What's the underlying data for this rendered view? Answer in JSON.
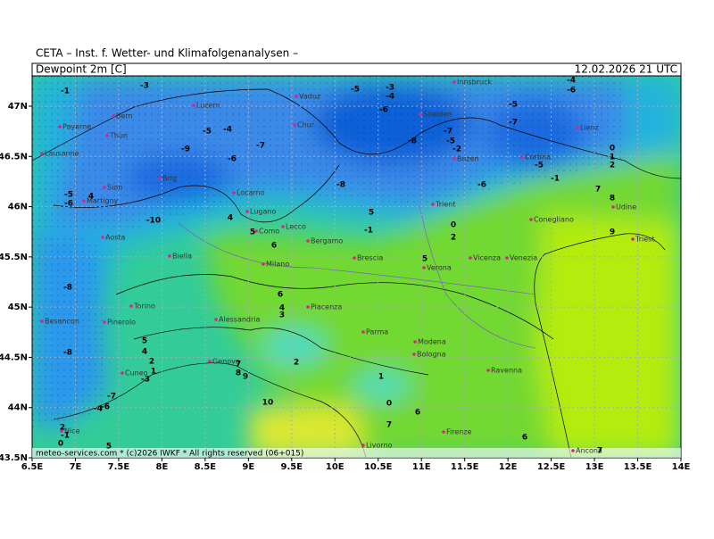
{
  "header": {
    "title": "CETA – Inst. f. Wetter- und Klimafolgenanalysen –",
    "field": "Dewpoint 2m [C]",
    "valid": "12.02.2026 21 UTC"
  },
  "map": {
    "lon_ticks": [
      {
        "value": 6.5,
        "label": "6.5E"
      },
      {
        "value": 7,
        "label": "7E"
      },
      {
        "value": 7.5,
        "label": "7.5E"
      },
      {
        "value": 8,
        "label": "8E"
      },
      {
        "value": 8.5,
        "label": "8.5E"
      },
      {
        "value": 9,
        "label": "9E"
      },
      {
        "value": 9.5,
        "label": "9.5E"
      },
      {
        "value": 10,
        "label": "10E"
      },
      {
        "value": 10.5,
        "label": "10.5E"
      },
      {
        "value": 11,
        "label": "11E"
      },
      {
        "value": 11.5,
        "label": "11.5E"
      },
      {
        "value": 12,
        "label": "12E"
      },
      {
        "value": 12.5,
        "label": "12.5E"
      },
      {
        "value": 13,
        "label": "13E"
      },
      {
        "value": 13.5,
        "label": "13.5E"
      },
      {
        "value": 14,
        "label": "14E"
      }
    ],
    "lat_ticks": [
      {
        "value": 43.5,
        "label": "43.5N"
      },
      {
        "value": 44,
        "label": "44N"
      },
      {
        "value": 44.5,
        "label": "44.5N"
      },
      {
        "value": 45,
        "label": "45N"
      },
      {
        "value": 45.5,
        "label": "45.5N"
      },
      {
        "value": 46,
        "label": "46N"
      },
      {
        "value": 46.5,
        "label": "46.5N"
      },
      {
        "value": 47,
        "label": "47N"
      }
    ],
    "cities": [
      "Bern",
      "Payerne",
      "Thun",
      "Lausanne",
      "Sion",
      "Martigny",
      "Brig",
      "Aosta",
      "Biella",
      "Torino",
      "Pinerolo",
      "Besancon",
      "Alessandria",
      "Cuneo",
      "Genova",
      "Como",
      "Lugano",
      "Locarno",
      "Lecco",
      "Bergamo",
      "Milano",
      "Piacenza",
      "Brescia",
      "Parma",
      "Modena",
      "Bologna",
      "Verona",
      "Vicenza",
      "Venezia",
      "Trient",
      "Bozen",
      "Soelden",
      "Innsbruck",
      "Vaduz",
      "Chur",
      "Luzern",
      "Cortina",
      "Lienz",
      "Udine",
      "Triest",
      "Conegliano",
      "Ravenna",
      "Firenze",
      "Livorno",
      "Ancona",
      "Nice"
    ],
    "contour_labels": [
      -1,
      -3,
      -5,
      -3,
      -4,
      -6,
      -4,
      -6,
      -5,
      -7,
      -8,
      -7,
      -5,
      -2,
      -6,
      -7,
      -4,
      -5,
      -9,
      -8,
      -6,
      -10,
      -6,
      -5,
      4,
      -8,
      -8,
      5,
      4,
      2,
      1,
      4,
      3,
      6,
      6,
      5,
      4,
      2,
      1,
      0,
      6,
      7,
      10,
      9,
      8,
      7,
      5,
      0,
      2,
      7,
      8,
      9,
      0,
      1,
      2,
      -5,
      -1,
      -3,
      -4,
      -6,
      -7,
      2,
      -1,
      0,
      5,
      -1,
      5,
      6,
      7
    ],
    "copyright": "meteo-services.com * (c)2026 IWKF * All rights reserved (06+015)"
  }
}
